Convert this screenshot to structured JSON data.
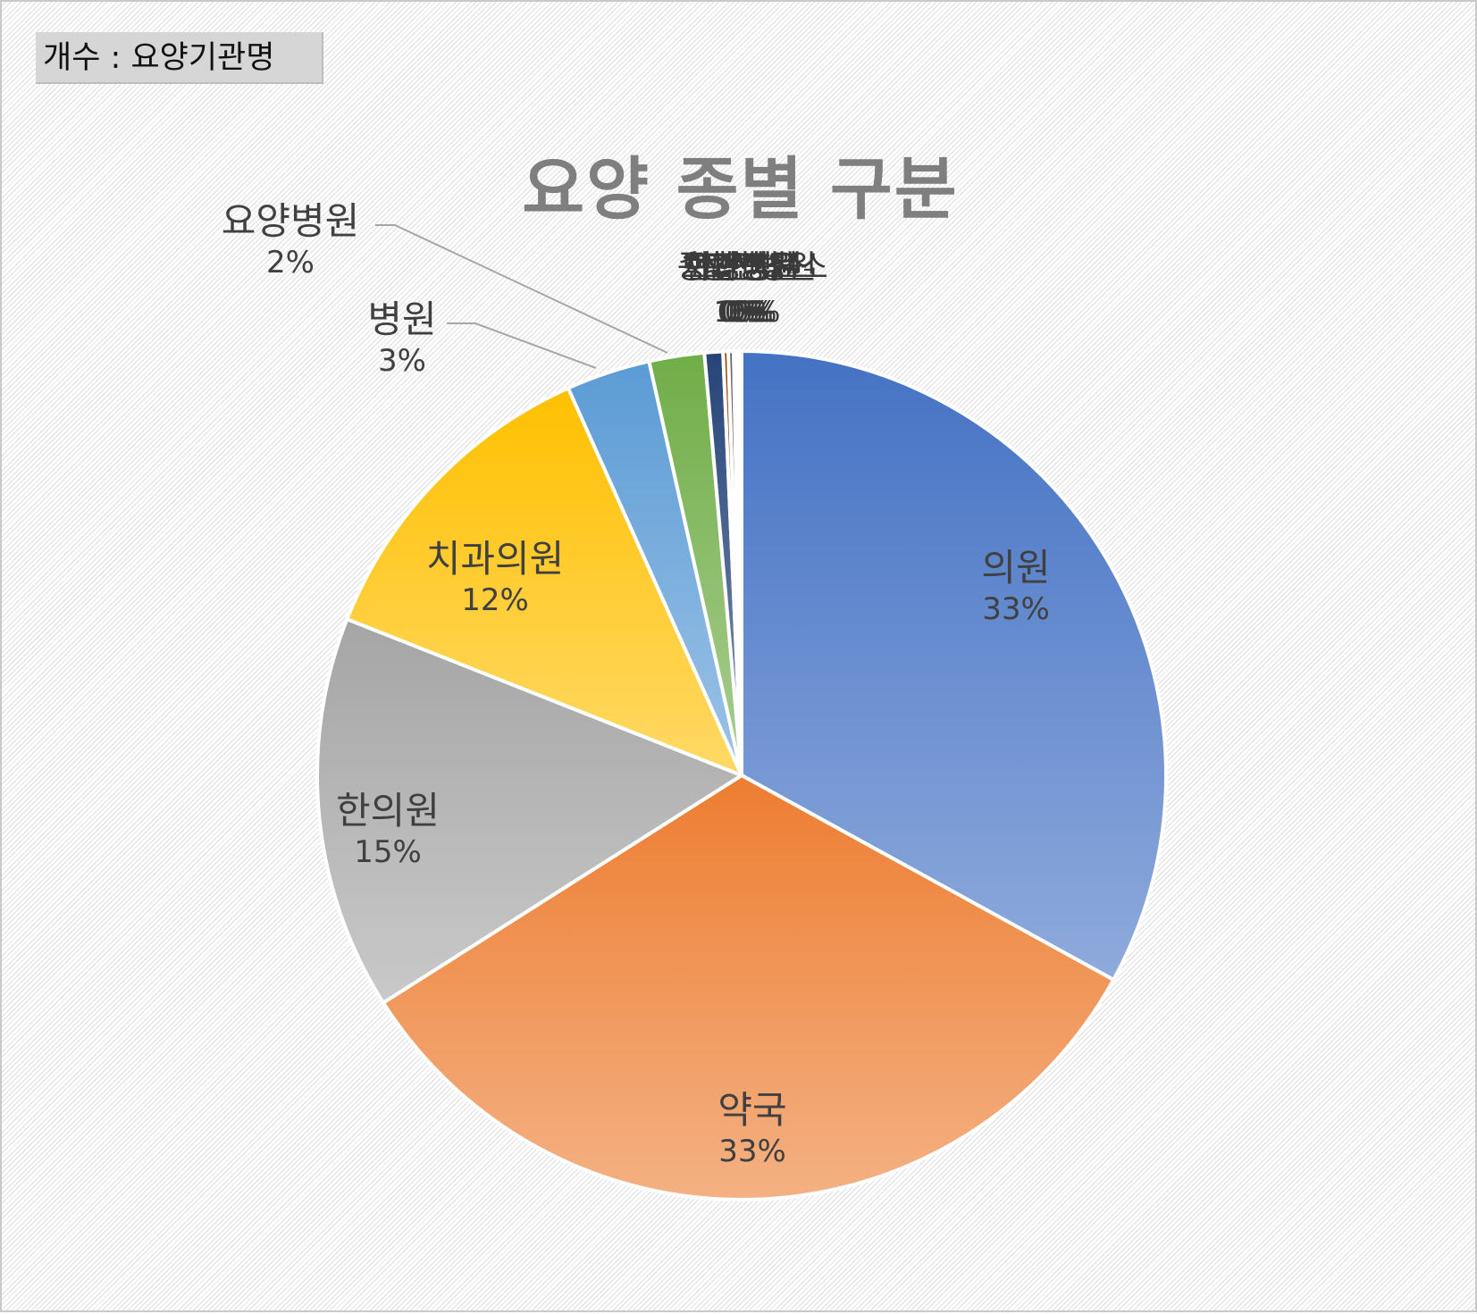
{
  "field_button": {
    "label": "개수 : 요양기관명"
  },
  "chart_data": {
    "type": "pie",
    "title": "요양 종별 구분",
    "slices": [
      {
        "name": "의원",
        "value": 33.0,
        "label": "33%",
        "color": "#4472c4"
      },
      {
        "name": "약국",
        "value": 33.0,
        "label": "33%",
        "color": "#ed7d31"
      },
      {
        "name": "한의원",
        "value": 15.0,
        "label": "15%",
        "color": "#a5a5a5"
      },
      {
        "name": "치과의원",
        "value": 12.3,
        "label": "12%",
        "color": "#ffc000"
      },
      {
        "name": "병원",
        "value": 3.2,
        "label": "3%",
        "color": "#5b9bd5"
      },
      {
        "name": "요양병원",
        "value": 2.1,
        "label": "2%",
        "color": "#70ad47"
      },
      {
        "name": "종합병원",
        "value": 0.7,
        "label": "1%",
        "color": "#264478"
      },
      {
        "name": "치과병원",
        "value": 0.2,
        "label": "0%",
        "color": "#9e480e"
      },
      {
        "name": "한방병원",
        "value": 0.2,
        "label": "0%",
        "color": "#636363"
      },
      {
        "name": "보건소",
        "value": 0.1,
        "label": "0%",
        "color": "#997300"
      },
      {
        "name": "보건지소",
        "value": 0.1,
        "label": "0%",
        "color": "#255e91"
      },
      {
        "name": "보건진료소",
        "value": 0.05,
        "label": "0%",
        "color": "#43682b"
      },
      {
        "name": "정신병원",
        "value": 0.05,
        "label": "0%",
        "color": "#698ed0"
      }
    ]
  }
}
